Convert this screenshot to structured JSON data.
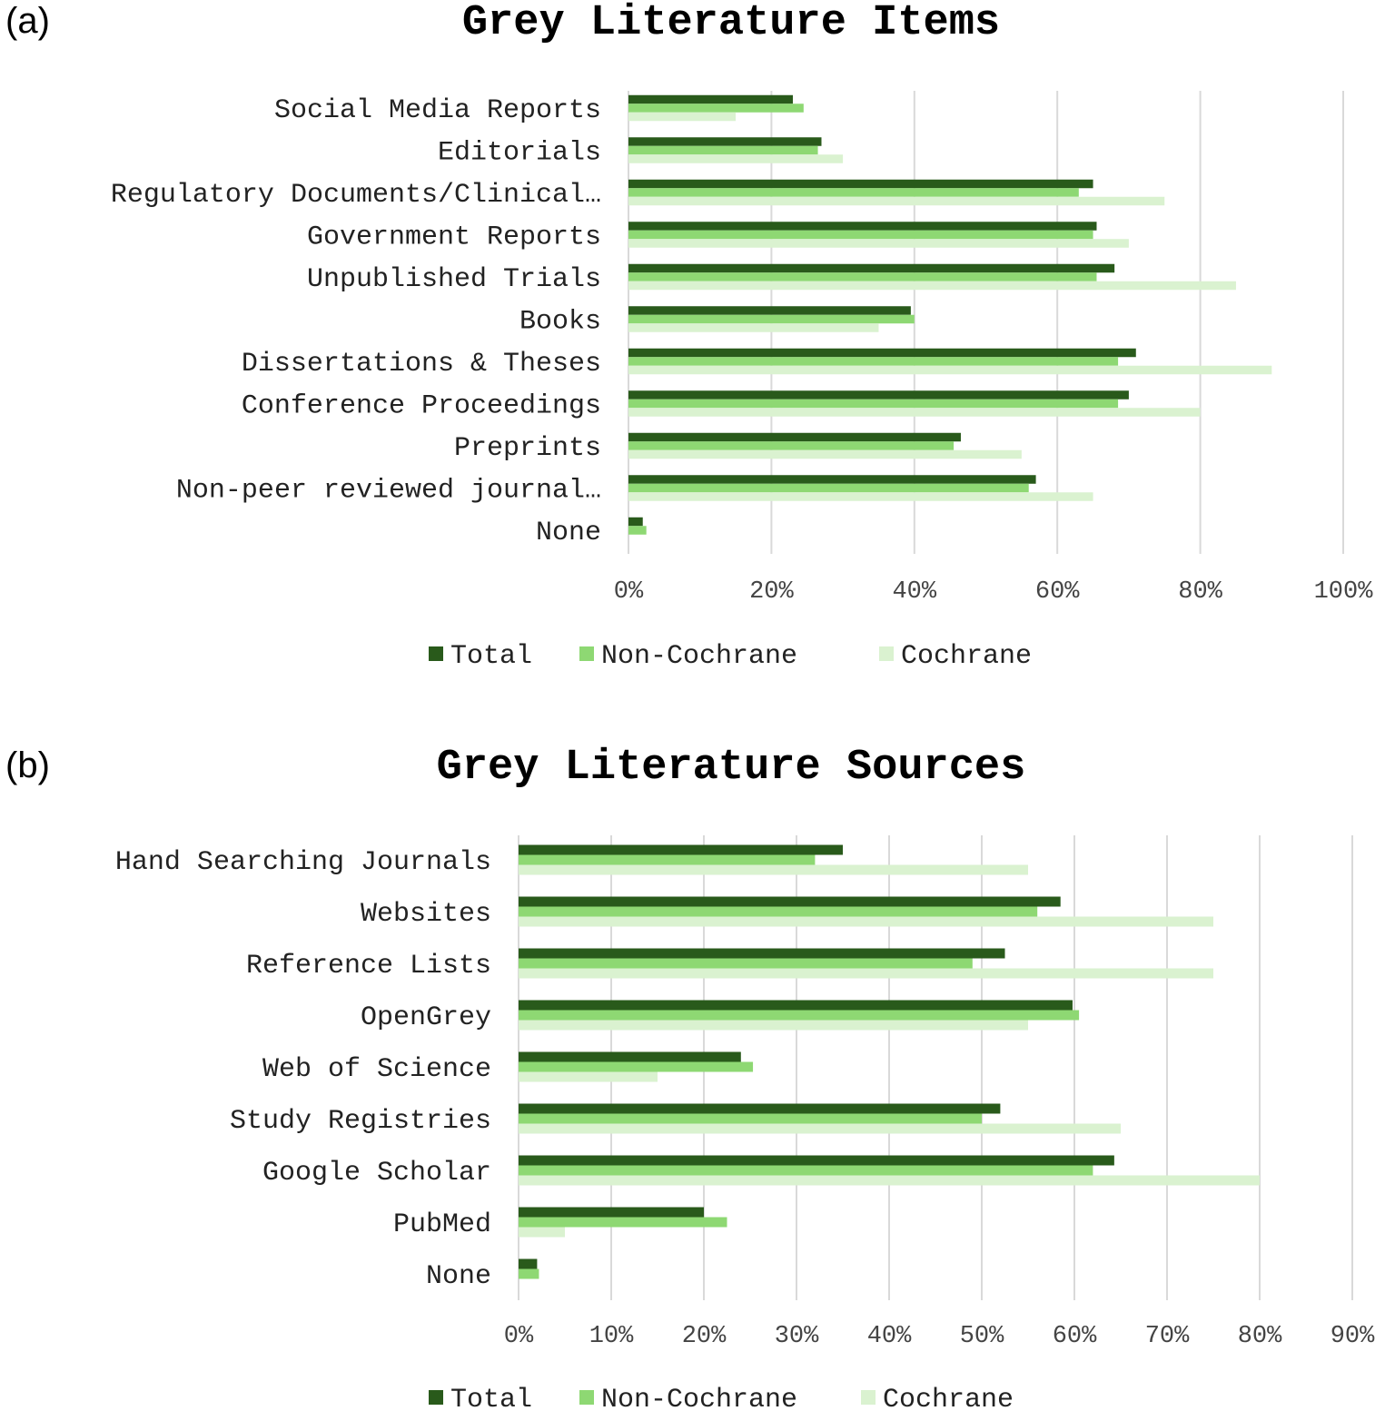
{
  "colors": {
    "Total": "#295A1B",
    "Non-Cochrane": "#8ED873",
    "Cochrane": "#DAF2D0",
    "grid": "#D9D9D9"
  },
  "chart_data": [
    {
      "panel": "(a)",
      "type": "bar",
      "orientation": "horizontal",
      "title": "Grey Literature Items",
      "categories": [
        "Social Media Reports",
        "Editorials",
        "Regulatory Documents/Clinical…",
        "Government Reports",
        "Unpublished Trials",
        "Books",
        "Dissertations & Theses",
        "Conference Proceedings",
        "Preprints",
        "Non-peer reviewed journal…",
        "None"
      ],
      "series": [
        {
          "name": "Total",
          "values": [
            23,
            27,
            65,
            65.5,
            68,
            39.5,
            71,
            70,
            46.5,
            57,
            2
          ]
        },
        {
          "name": "Non-Cochrane",
          "values": [
            24.5,
            26.5,
            63,
            65,
            65.5,
            40,
            68.5,
            68.5,
            45.5,
            56,
            2.5
          ]
        },
        {
          "name": "Cochrane",
          "values": [
            15,
            30,
            75,
            70,
            85,
            35,
            90,
            80,
            55,
            65,
            0
          ]
        }
      ],
      "xlim": [
        0,
        100
      ],
      "xticks": [
        "0%",
        "20%",
        "40%",
        "60%",
        "80%",
        "100%"
      ],
      "grid": true,
      "legend": "bottom"
    },
    {
      "panel": "(b)",
      "type": "bar",
      "orientation": "horizontal",
      "title": "Grey Literature Sources",
      "categories": [
        "Hand Searching Journals",
        "Websites",
        "Reference Lists",
        "OpenGrey",
        "Web of Science",
        "Study Registries",
        "Google Scholar",
        "PubMed",
        "None"
      ],
      "series": [
        {
          "name": "Total",
          "values": [
            35,
            58.5,
            52.5,
            59.8,
            24,
            52,
            64.3,
            20,
            2
          ]
        },
        {
          "name": "Non-Cochrane",
          "values": [
            32,
            56,
            49,
            60.5,
            25.3,
            50,
            62,
            22.5,
            2.2
          ]
        },
        {
          "name": "Cochrane",
          "values": [
            55,
            75,
            75,
            55,
            15,
            65,
            80,
            5,
            0
          ]
        }
      ],
      "xlim": [
        0,
        90
      ],
      "xticks": [
        "0%",
        "10%",
        "20%",
        "30%",
        "40%",
        "50%",
        "60%",
        "70%",
        "80%",
        "90%"
      ],
      "grid": true,
      "legend": "bottom"
    }
  ]
}
